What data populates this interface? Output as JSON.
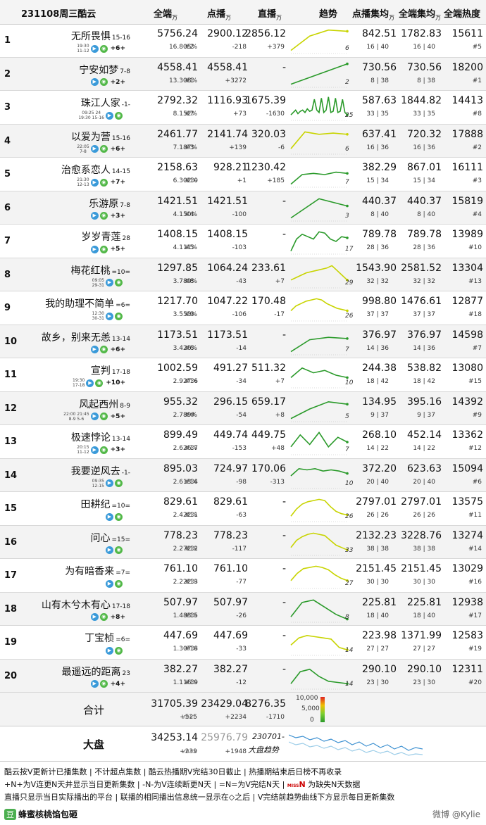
{
  "header": {
    "date_label": "231108周三酷云",
    "unit": "万",
    "cols": [
      "全端",
      "点播",
      "直播",
      "趋势",
      "点播集均",
      "全端集均",
      "全端热度"
    ]
  },
  "rows": [
    {
      "rank": "1",
      "title": "无所畏惧",
      "ep": "15-16",
      "tag1": "19:30",
      "tag2": "11-12",
      "upd": "+6+",
      "total": "5756.24",
      "share": "16.805%",
      "vod": "2900.12",
      "vod_rank": "#2",
      "vod_delta": "-218",
      "live": "2856.12",
      "live_delta": "+379",
      "vod_avg": "842.51",
      "vod_avg_sub": "16 | 40",
      "all_avg": "1782.83",
      "all_avg_sub": "16 | 40",
      "heat": "15611",
      "heat_rank": "#5",
      "trend_n": "6",
      "color": "#c8d400",
      "trend": [
        0.1,
        0.7,
        0.95,
        0.9
      ]
    },
    {
      "rank": "2",
      "title": "宁安如梦",
      "ep": "7-8",
      "tag1": "",
      "tag2": "",
      "upd": "+2+",
      "total": "4558.41",
      "share": "13.308%",
      "vod": "4558.41",
      "vod_rank": "#1",
      "vod_delta": "+3272",
      "live": "-",
      "live_delta": "",
      "vod_avg": "730.56",
      "vod_avg_sub": "8 | 38",
      "all_avg": "730.56",
      "all_avg_sub": "8 | 38",
      "heat": "18200",
      "heat_rank": "#1",
      "trend_n": "2",
      "color": "#2a9a2a",
      "trend": [
        0.1,
        0.95
      ]
    },
    {
      "rank": "3",
      "title": "珠江人家",
      "ep": "-1-",
      "tag1": "09:25 24",
      "tag2": "19:30 15-16",
      "upd": "",
      "total": "2792.32",
      "share": "8.152%",
      "vod": "1116.93",
      "vod_rank": "#7",
      "vod_delta": "+73",
      "live": "1675.39",
      "live_delta": "-1630",
      "vod_avg": "587.63",
      "vod_avg_sub": "33 | 35",
      "all_avg": "1844.82",
      "all_avg_sub": "33 | 35",
      "heat": "14413",
      "heat_rank": "#8",
      "trend_n": "25",
      "color": "#2a9a2a",
      "trend": [
        0.2,
        0.3,
        0.4,
        0.25,
        0.35,
        0.4,
        0.3,
        0.45,
        0.35,
        0.4,
        0.85,
        0.4,
        0.3,
        0.9,
        0.3,
        0.4,
        0.95,
        0.3,
        0.35,
        0.9,
        0.3,
        0.35,
        0.85,
        0.3,
        0.2
      ]
    },
    {
      "rank": "4",
      "title": "以爱为营",
      "ep": "15-16",
      "tag1": "22:05",
      "tag2": "7-8",
      "upd": "+6+",
      "total": "2461.77",
      "share": "7.187%",
      "vod": "2141.74",
      "vod_rank": "#3",
      "vod_delta": "+139",
      "live": "320.03",
      "live_delta": "-6",
      "vod_avg": "637.41",
      "vod_avg_sub": "16 | 36",
      "all_avg": "720.32",
      "all_avg_sub": "16 | 36",
      "heat": "17888",
      "heat_rank": "#2",
      "trend_n": "6",
      "color": "#c8d400",
      "trend": [
        0.2,
        0.9,
        0.8,
        0.85,
        0.8
      ]
    },
    {
      "rank": "5",
      "title": "治愈系恋人",
      "ep": "14-15",
      "tag1": "21:30",
      "tag2": "12-13",
      "upd": "+7+",
      "total": "2158.63",
      "share": "6.302%",
      "vod": "928.21",
      "vod_rank": "#10",
      "vod_delta": "+1",
      "live": "1230.42",
      "live_delta": "+185",
      "vod_avg": "382.29",
      "vod_avg_sub": "15 | 34",
      "all_avg": "867.01",
      "all_avg_sub": "15 | 34",
      "heat": "16111",
      "heat_rank": "#3",
      "trend_n": "7",
      "color": "#2a9a2a",
      "trend": [
        0.1,
        0.5,
        0.55,
        0.5,
        0.6,
        0.55
      ]
    },
    {
      "rank": "6",
      "title": "乐游原",
      "ep": "7-8",
      "tag1": "",
      "tag2": "",
      "upd": "+3+",
      "total": "1421.51",
      "share": "4.150%",
      "vod": "1421.51",
      "vod_rank": "#4",
      "vod_delta": "-100",
      "live": "-",
      "live_delta": "",
      "vod_avg": "440.37",
      "vod_avg_sub": "8 | 40",
      "all_avg": "440.37",
      "all_avg_sub": "8 | 40",
      "heat": "15819",
      "heat_rank": "#4",
      "trend_n": "3",
      "color": "#2a9a2a",
      "trend": [
        0.1,
        0.9,
        0.6
      ]
    },
    {
      "rank": "7",
      "title": "岁岁青莲",
      "ep": "28",
      "tag1": "",
      "tag2": "",
      "upd": "+5+",
      "total": "1408.15",
      "share": "4.111%",
      "vod": "1408.15",
      "vod_rank": "#5",
      "vod_delta": "-103",
      "live": "-",
      "live_delta": "",
      "vod_avg": "789.78",
      "vod_avg_sub": "28 | 36",
      "all_avg": "789.78",
      "all_avg_sub": "28 | 36",
      "heat": "13989",
      "heat_rank": "#10",
      "trend_n": "17",
      "color": "#2a9a2a",
      "trend": [
        0.1,
        0.6,
        0.8,
        0.7,
        0.6,
        0.9,
        0.85,
        0.6,
        0.5,
        0.7,
        0.65
      ]
    },
    {
      "rank": "8",
      "title": "梅花红桃",
      "ep": "=10=",
      "tag1": "09:05",
      "tag2": "29-31",
      "upd": "",
      "total": "1297.85",
      "share": "3.789%",
      "vod": "1064.24",
      "vod_rank": "#8",
      "vod_delta": "-43",
      "live": "233.61",
      "live_delta": "+7",
      "vod_avg": "1543.90",
      "vod_avg_sub": "32 | 32",
      "all_avg": "2581.52",
      "all_avg_sub": "32 | 32",
      "heat": "13304",
      "heat_rank": "#13",
      "trend_n": "29",
      "color": "#c8d400",
      "trend": [
        0.3,
        0.4,
        0.5,
        0.6,
        0.65,
        0.7,
        0.75,
        0.8,
        0.9,
        0.7,
        0.5,
        0.3
      ]
    },
    {
      "rank": "9",
      "title": "我的助理不简单",
      "ep": "=6=",
      "tag1": "12:30",
      "tag2": "30-31",
      "upd": "",
      "total": "1217.70",
      "share": "3.555%",
      "vod": "1047.22",
      "vod_rank": "#9",
      "vod_delta": "-106",
      "live": "170.48",
      "live_delta": "-17",
      "vod_avg": "998.80",
      "vod_avg_sub": "37 | 37",
      "all_avg": "1476.61",
      "all_avg_sub": "37 | 37",
      "heat": "12877",
      "heat_rank": "#18",
      "trend_n": "26",
      "color": "#c8d400",
      "trend": [
        0.4,
        0.6,
        0.7,
        0.8,
        0.85,
        0.9,
        0.85,
        0.7,
        0.6,
        0.5,
        0.45,
        0.4
      ]
    },
    {
      "rank": "10",
      "title": "故乡，别来无恙",
      "ep": "13-14",
      "tag1": "",
      "tag2": "",
      "upd": "+6+",
      "total": "1173.51",
      "share": "3.426%",
      "vod": "1173.51",
      "vod_rank": "#6",
      "vod_delta": "-14",
      "live": "-",
      "live_delta": "",
      "vod_avg": "376.97",
      "vod_avg_sub": "14 | 36",
      "all_avg": "376.97",
      "all_avg_sub": "14 | 36",
      "heat": "14598",
      "heat_rank": "#7",
      "trend_n": "7",
      "color": "#2a9a2a",
      "trend": [
        0.1,
        0.6,
        0.7,
        0.65
      ]
    },
    {
      "rank": "11",
      "title": "宣判",
      "ep": "17-18",
      "tag1": "19:30",
      "tag2": "17-18",
      "upd": "+10+",
      "total": "1002.59",
      "share": "2.927%",
      "vod": "491.27",
      "vod_rank": "#16",
      "vod_delta": "-34",
      "live": "511.32",
      "live_delta": "+7",
      "vod_avg": "244.38",
      "vod_avg_sub": "18 | 42",
      "all_avg": "538.82",
      "all_avg_sub": "18 | 42",
      "heat": "13080",
      "heat_rank": "#15",
      "trend_n": "10",
      "color": "#2a9a2a",
      "trend": [
        0.4,
        0.8,
        0.6,
        0.7,
        0.5,
        0.4
      ]
    },
    {
      "rank": "12",
      "title": "风起西州",
      "ep": "8-9",
      "tag1": "22:00 21:45",
      "tag2": "8-9 5-6",
      "upd": "+5+",
      "total": "955.32",
      "share": "2.789%",
      "vod": "296.15",
      "vod_rank": "##",
      "vod_delta": "-54",
      "live": "659.17",
      "live_delta": "+8",
      "vod_avg": "134.95",
      "vod_avg_sub": "9 | 37",
      "all_avg": "395.16",
      "all_avg_sub": "9 | 37",
      "heat": "14392",
      "heat_rank": "#9",
      "trend_n": "5",
      "color": "#2a9a2a",
      "trend": [
        0.1,
        0.5,
        0.8,
        0.7
      ]
    },
    {
      "rank": "13",
      "title": "极速悖论",
      "ep": "13-14",
      "tag1": "20:15",
      "tag2": "11-12",
      "upd": "+3+",
      "total": "899.49",
      "share": "2.626%",
      "vod": "449.74",
      "vod_rank": "#17",
      "vod_delta": "-153",
      "live": "449.75",
      "live_delta": "+48",
      "vod_avg": "268.10",
      "vod_avg_sub": "14 | 22",
      "all_avg": "452.14",
      "all_avg_sub": "14 | 22",
      "heat": "13362",
      "heat_rank": "#12",
      "trend_n": "7",
      "color": "#2a9a2a",
      "trend": [
        0.3,
        0.8,
        0.4,
        0.9,
        0.3,
        0.7,
        0.5
      ]
    },
    {
      "rank": "14",
      "title": "我要逆风去",
      "ep": "-1-",
      "tag1": "09:35",
      "tag2": "12-15",
      "upd": "",
      "total": "895.03",
      "share": "2.613%",
      "vod": "724.97",
      "vod_rank": "#14",
      "vod_delta": "-98",
      "live": "170.06",
      "live_delta": "-313",
      "vod_avg": "372.20",
      "vod_avg_sub": "20 | 40",
      "all_avg": "623.63",
      "all_avg_sub": "20 | 40",
      "heat": "15094",
      "heat_rank": "#6",
      "trend_n": "10",
      "color": "#2a9a2a",
      "trend": [
        0.5,
        0.8,
        0.75,
        0.8,
        0.7,
        0.75,
        0.7,
        0.6
      ]
    },
    {
      "rank": "15",
      "title": "田耕纪",
      "ep": "=10=",
      "tag1": "",
      "tag2": "",
      "upd": "",
      "total": "829.61",
      "share": "2.422%",
      "vod": "829.61",
      "vod_rank": "#11",
      "vod_delta": "-63",
      "live": "-",
      "live_delta": "",
      "vod_avg": "2797.01",
      "vod_avg_sub": "26 | 26",
      "all_avg": "2797.01",
      "all_avg_sub": "26 | 26",
      "heat": "13575",
      "heat_rank": "#11",
      "trend_n": "26",
      "color": "#c8d400",
      "trend": [
        0.2,
        0.5,
        0.7,
        0.8,
        0.85,
        0.9,
        0.85,
        0.6,
        0.4,
        0.3,
        0.25
      ]
    },
    {
      "rank": "16",
      "title": "问心",
      "ep": "=15=",
      "tag1": "",
      "tag2": "",
      "upd": "",
      "total": "778.23",
      "share": "2.272%",
      "vod": "778.23",
      "vod_rank": "#12",
      "vod_delta": "-117",
      "live": "-",
      "live_delta": "",
      "vod_avg": "2132.23",
      "vod_avg_sub": "38 | 38",
      "all_avg": "3228.76",
      "all_avg_sub": "38 | 38",
      "heat": "13274",
      "heat_rank": "#14",
      "trend_n": "33",
      "color": "#c8d400",
      "trend": [
        0.3,
        0.6,
        0.75,
        0.85,
        0.9,
        0.85,
        0.8,
        0.6,
        0.4,
        0.3,
        0.2
      ]
    },
    {
      "rank": "17",
      "title": "为有暗香来",
      "ep": "=7=",
      "tag1": "",
      "tag2": "",
      "upd": "",
      "total": "761.10",
      "share": "2.222%",
      "vod": "761.10",
      "vod_rank": "#13",
      "vod_delta": "-77",
      "live": "-",
      "live_delta": "",
      "vod_avg": "2151.45",
      "vod_avg_sub": "30 | 30",
      "all_avg": "2151.45",
      "all_avg_sub": "30 | 30",
      "heat": "13029",
      "heat_rank": "#16",
      "trend_n": "27",
      "color": "#c8d400",
      "trend": [
        0.3,
        0.6,
        0.8,
        0.85,
        0.9,
        0.85,
        0.75,
        0.55,
        0.4,
        0.3
      ]
    },
    {
      "rank": "18",
      "title": "山有木兮木有心",
      "ep": "17-18",
      "tag1": "",
      "tag2": "",
      "upd": "+8+",
      "total": "507.97",
      "share": "1.483%",
      "vod": "507.97",
      "vod_rank": "#15",
      "vod_delta": "-26",
      "live": "-",
      "live_delta": "",
      "vod_avg": "225.81",
      "vod_avg_sub": "18 | 40",
      "all_avg": "225.81",
      "all_avg_sub": "18 | 40",
      "heat": "12938",
      "heat_rank": "#17",
      "trend_n": "8",
      "color": "#2a9a2a",
      "trend": [
        0.2,
        0.8,
        0.9,
        0.6,
        0.3,
        0.1
      ]
    },
    {
      "rank": "19",
      "title": "丁宝桢",
      "ep": "=6=",
      "tag1": "",
      "tag2": "",
      "upd": "",
      "total": "447.69",
      "share": "1.307%",
      "vod": "447.69",
      "vod_rank": "#18",
      "vod_delta": "-33",
      "live": "-",
      "live_delta": "",
      "vod_avg": "223.98",
      "vod_avg_sub": "27 | 27",
      "all_avg": "1371.99",
      "all_avg_sub": "27 | 27",
      "heat": "12583",
      "heat_rank": "#19",
      "trend_n": "14",
      "color": "#c8d400",
      "trend": [
        0.4,
        0.7,
        0.8,
        0.75,
        0.7,
        0.65,
        0.3,
        0.2
      ]
    },
    {
      "rank": "20",
      "title": "最遥远的距离",
      "ep": "23",
      "tag1": "",
      "tag2": "",
      "upd": "+4+",
      "total": "382.27",
      "share": "1.116%",
      "vod": "382.27",
      "vod_rank": "#19",
      "vod_delta": "-12",
      "live": "-",
      "live_delta": "",
      "vod_avg": "290.10",
      "vod_avg_sub": "23 | 30",
      "all_avg": "290.10",
      "all_avg_sub": "23 | 30",
      "heat": "12311",
      "heat_rank": "#20",
      "trend_n": "14",
      "color": "#2a9a2a",
      "trend": [
        0.2,
        0.7,
        0.8,
        0.5,
        0.3,
        0.25,
        0.2
      ]
    }
  ],
  "total_row": {
    "label": "合计",
    "total": "31705.39",
    "total_delta": "+525",
    "vod": "23429.04",
    "vod_tag": "min",
    "vod_delta": "+2234",
    "live": "8276.35",
    "live_delta": "-1710",
    "legend_hi": "10,000",
    "legend_mid": "5,000",
    "legend_lo": "0"
  },
  "market_row": {
    "label": "大盘",
    "total": "34253.14",
    "total_delta": "+239",
    "vod": "25976.79",
    "vod_tag": "max",
    "vod_delta": "+1948",
    "trend_label1": "230701-",
    "trend_label2": "大盘趋势"
  },
  "notes": [
    "酷云按V更新计已播集数 | 不计超点集数 | 酷云热播期V完结30日截止 | 热播期结束后日榜不再收录",
    "+N+为V连更N天并显示当日更新集数 | -N-为V连续断更N天 | =N=为V完结N天 |",
    "为缺失N天数据",
    "直播只显示当日实际播出的平台 | 联播的相同播出信息统一显示在◇之后 | V完结前趋势曲线下方显示每日更新集数"
  ],
  "miss_tag": "MISS",
  "miss_n": "N",
  "footer": {
    "brand": "蜂蜜核桃馅包砸",
    "badge": "豆",
    "watermark": "微博 @Kylie"
  }
}
